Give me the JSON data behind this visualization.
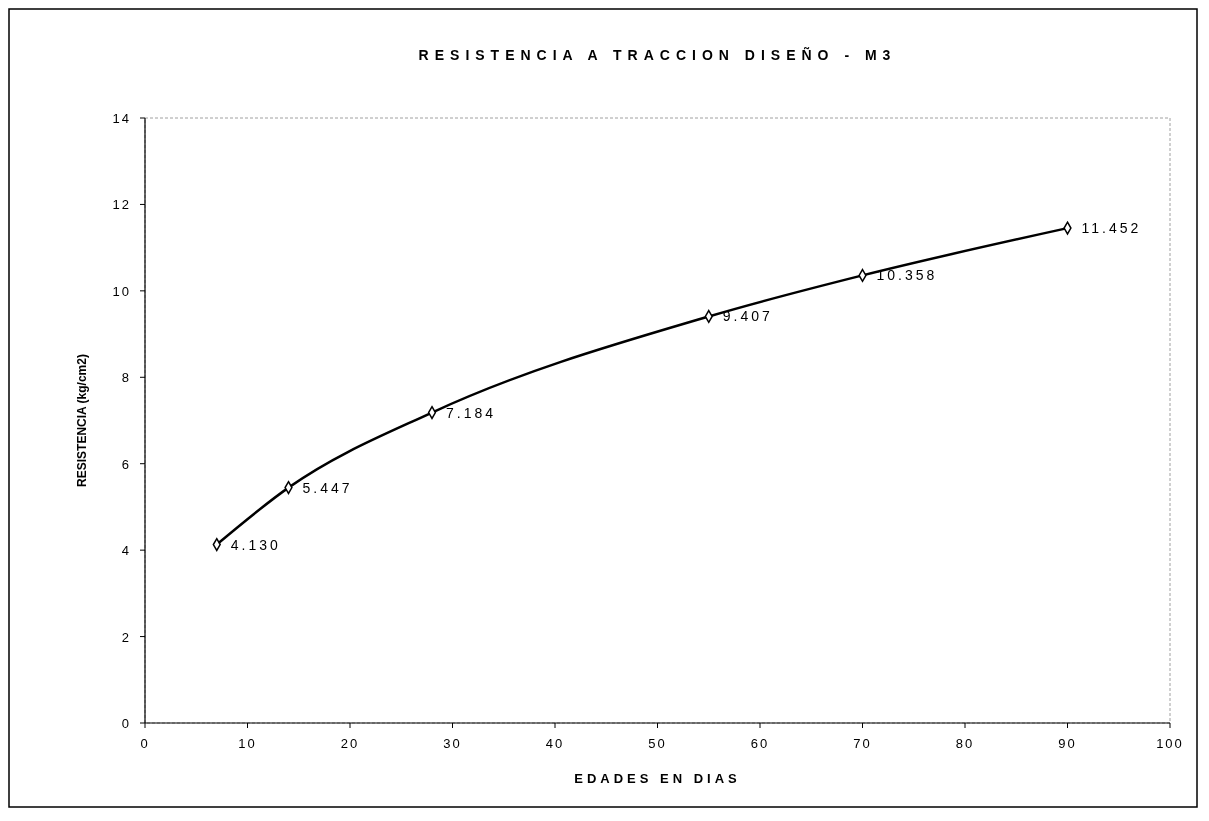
{
  "chart_data": {
    "type": "line",
    "title": "RESISTENCIA A TRACCION DISEÑO - M3",
    "xlabel": "EDADES EN DIAS",
    "ylabel": "RESISTENCIA (kg/cm2)",
    "x": [
      7,
      14,
      28,
      55,
      70,
      90
    ],
    "series": [
      {
        "color": "#000000",
        "values": [
          4.13,
          5.447,
          7.184,
          9.407,
          10.358,
          11.452
        ],
        "value_labels": [
          "4.130",
          "5.447",
          "7.184",
          "9.407",
          "10.358",
          "11.452"
        ]
      }
    ],
    "xlim": [
      0,
      100
    ],
    "xticks": [
      0,
      10,
      20,
      30,
      40,
      50,
      60,
      70,
      80,
      90,
      100
    ],
    "ylim": [
      0,
      14
    ],
    "yticks": [
      0,
      2,
      4,
      6,
      8,
      10,
      12,
      14
    ],
    "grid": false,
    "marker": "diamond",
    "line_style": "solid"
  }
}
